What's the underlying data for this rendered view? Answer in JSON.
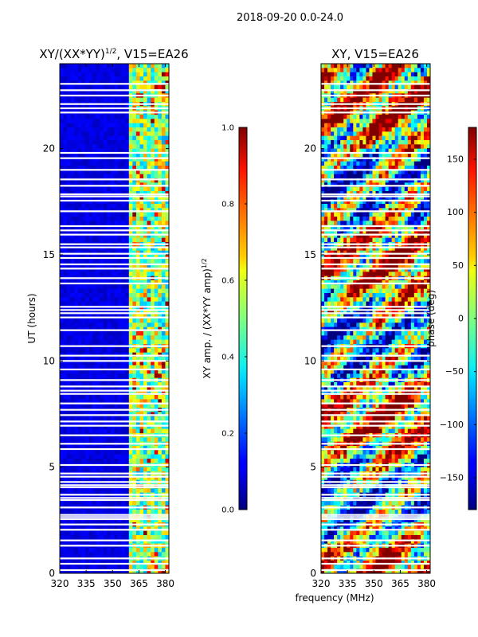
{
  "suptitle": "2018-09-20 0.0-24.0",
  "shared_xlabel": "frequency (MHz)",
  "chart_data": [
    {
      "type": "heatmap",
      "title_main": "XY/(XX*YY)",
      "title_sup": "1/2",
      "title_tail": ", V15=EA26",
      "ylabel": "UT (hours)",
      "xlim": [
        320,
        382
      ],
      "ylim": [
        0,
        24
      ],
      "xticks": [
        "320",
        "335",
        "350",
        "365",
        "380"
      ],
      "xtick_values": [
        320,
        335,
        350,
        365,
        380
      ],
      "yticks": [
        "0",
        "5",
        "10",
        "15",
        "20"
      ],
      "ytick_values": [
        0,
        5,
        10,
        15,
        20
      ],
      "colorbar": {
        "label_main": "XY amp. / (XX*YY amp)",
        "label_sup": "1/2",
        "range": [
          0.0,
          1.0
        ],
        "ticks": [
          "0.0",
          "0.2",
          "0.4",
          "0.6",
          "0.8",
          "1.0"
        ],
        "tick_values": [
          0.0,
          0.2,
          0.4,
          0.6,
          0.8,
          1.0
        ]
      },
      "flagged_rows_ut": [
        0.15,
        0.45,
        0.7,
        1.3,
        1.55,
        2.05,
        2.3,
        2.55,
        2.65,
        2.75,
        3.1,
        3.45,
        3.55,
        3.7,
        4.05,
        4.15,
        4.3,
        4.55,
        4.7,
        5.1,
        5.85,
        6.1,
        6.5,
        6.95,
        7.15,
        7.45,
        7.7,
        8.0,
        8.45,
        8.6,
        8.8,
        9.1,
        9.6,
        10.0,
        10.25,
        10.7,
        11.45,
        12.05,
        12.25,
        12.4,
        12.55,
        13.65,
        13.9,
        14.35,
        14.55,
        14.85,
        15.05,
        15.35,
        15.5,
        15.95,
        16.15,
        16.35,
        17.05,
        17.55,
        17.75,
        17.85,
        18.25,
        18.55,
        19.0,
        19.55,
        19.8,
        21.7,
        21.9,
        22.1,
        22.5,
        22.75,
        23.05
      ]
    },
    {
      "type": "heatmap",
      "title": "XY, V15=EA26",
      "ylabel": "",
      "xlim": [
        320,
        382
      ],
      "ylim": [
        0,
        24
      ],
      "xticks": [
        "320",
        "335",
        "350",
        "365",
        "380"
      ],
      "xtick_values": [
        320,
        335,
        350,
        365,
        380
      ],
      "yticks": [
        "0",
        "5",
        "10",
        "15",
        "20"
      ],
      "ytick_values": [
        0,
        5,
        10,
        15,
        20
      ],
      "colorbar": {
        "label": "phase (deg)",
        "range": [
          -180,
          180
        ],
        "ticks": [
          "−150",
          "−100",
          "−50",
          "0",
          "50",
          "100",
          "150"
        ],
        "tick_values": [
          -150,
          -100,
          -50,
          0,
          50,
          100,
          150
        ]
      },
      "flagged_rows_ut": [
        0.15,
        0.45,
        0.7,
        1.3,
        1.55,
        2.05,
        2.3,
        2.55,
        2.65,
        2.75,
        3.1,
        3.45,
        3.55,
        3.7,
        4.05,
        4.15,
        4.3,
        4.55,
        4.7,
        5.1,
        5.85,
        6.1,
        6.5,
        6.95,
        7.15,
        7.45,
        7.7,
        8.0,
        8.45,
        8.6,
        8.8,
        9.1,
        9.6,
        10.0,
        10.25,
        10.7,
        11.45,
        12.05,
        12.25,
        12.4,
        12.55,
        13.65,
        13.9,
        14.35,
        14.55,
        14.85,
        15.05,
        15.35,
        15.5,
        15.95,
        16.15,
        16.35,
        17.05,
        17.55,
        17.75,
        17.85,
        18.25,
        18.55,
        19.0,
        19.55,
        19.8,
        21.7,
        21.9,
        22.1,
        22.5,
        22.75,
        23.05
      ]
    }
  ]
}
